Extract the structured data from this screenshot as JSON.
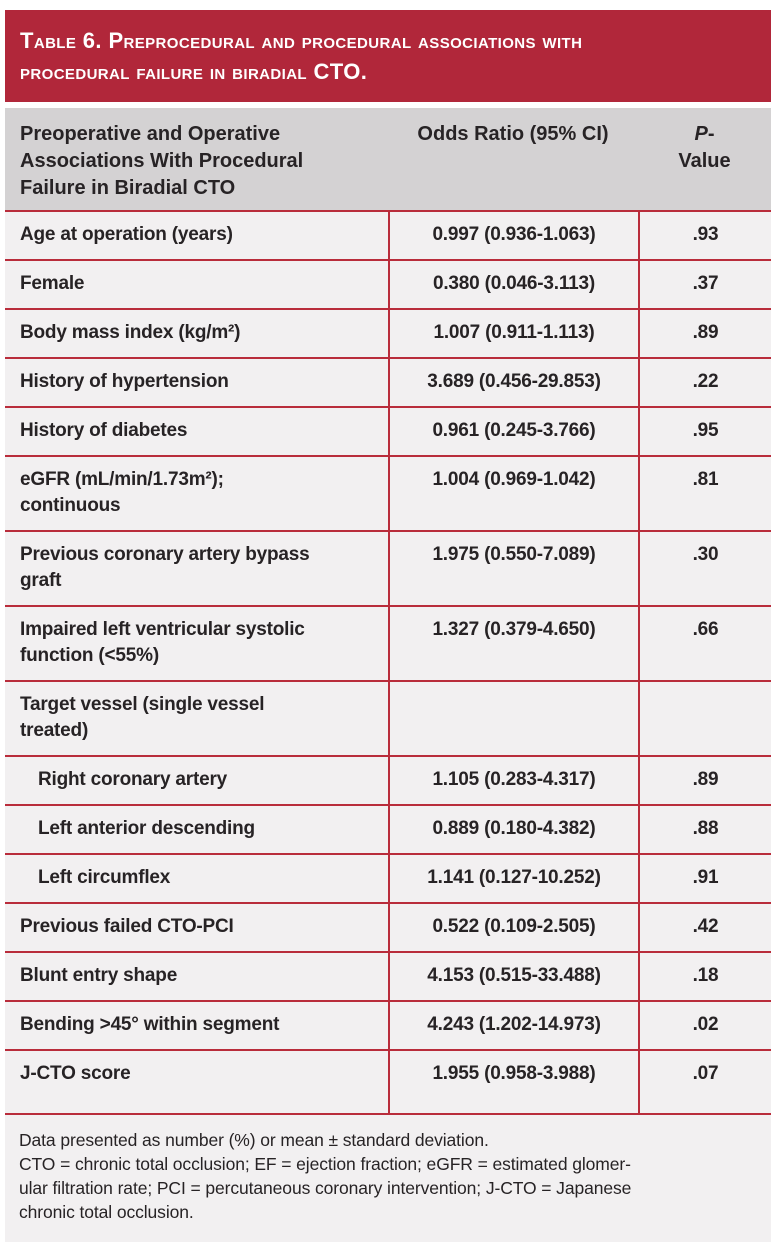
{
  "table": {
    "title": "Table 6. Preprocedural and procedural associations with\nprocedural failure in biradial CTO.",
    "columns": {
      "label": "Preoperative and Operative\nAssociations With Procedural\nFailure in Biradial CTO",
      "odds_ratio": "Odds Ratio (95% CI)",
      "p_value_line1": "P-",
      "p_value_line2": "Value"
    },
    "rows": [
      {
        "label": "Age at operation (years)",
        "or": "0.997 (0.936-1.063)",
        "p": ".93",
        "indent": false
      },
      {
        "label": "Female",
        "or": "0.380 (0.046-3.113)",
        "p": ".37",
        "indent": false
      },
      {
        "label": "Body mass index (kg/m²)",
        "or": "1.007 (0.911-1.113)",
        "p": ".89",
        "indent": false
      },
      {
        "label": "History of hypertension",
        "or": "3.689 (0.456-29.853)",
        "p": ".22",
        "indent": false
      },
      {
        "label": "History of diabetes",
        "or": "0.961 (0.245-3.766)",
        "p": ".95",
        "indent": false
      },
      {
        "label": "eGFR (mL/min/1.73m²);\ncontinuous",
        "or": "1.004 (0.969-1.042)",
        "p": ".81",
        "indent": false
      },
      {
        "label": "Previous coronary artery bypass\ngraft",
        "or": "1.975 (0.550-7.089)",
        "p": ".30",
        "indent": false
      },
      {
        "label": "Impaired left ventricular systolic\nfunction (<55%)",
        "or": "1.327 (0.379-4.650)",
        "p": ".66",
        "indent": false
      },
      {
        "label": "Target vessel (single vessel\ntreated)",
        "or": "",
        "p": "",
        "indent": false
      },
      {
        "label": "Right coronary artery",
        "or": "1.105 (0.283-4.317)",
        "p": ".89",
        "indent": true
      },
      {
        "label": "Left anterior descending",
        "or": "0.889 (0.180-4.382)",
        "p": ".88",
        "indent": true
      },
      {
        "label": "Left circumflex",
        "or": "1.141 (0.127-10.252)",
        "p": ".91",
        "indent": true
      },
      {
        "label": "Previous failed CTO-PCI",
        "or": "0.522 (0.109-2.505)",
        "p": ".42",
        "indent": false
      },
      {
        "label": "Blunt entry shape",
        "or": "4.153 (0.515-33.488)",
        "p": ".18",
        "indent": false
      },
      {
        "label": "Bending >45° within segment",
        "or": "4.243 (1.202-14.973)",
        "p": ".02",
        "indent": false
      },
      {
        "label": "J-CTO score",
        "or": "1.955 (0.958-3.988)",
        "p": ".07",
        "indent": false
      }
    ],
    "footnotes": [
      "Data presented as number (%) or mean ± standard deviation.",
      "CTO = chronic total occlusion; EF = ejection fraction; eGFR = estimated glomer-\nular filtration rate; PCI = percutaneous coronary intervention; J-CTO = Japanese\nchronic total occlusion."
    ],
    "colors": {
      "banner_red": "#b1273a",
      "line_red": "#b92c3b",
      "header_gray": "#d4d2d3",
      "row_gray": "#f2f0f1",
      "text": "#272325"
    }
  }
}
